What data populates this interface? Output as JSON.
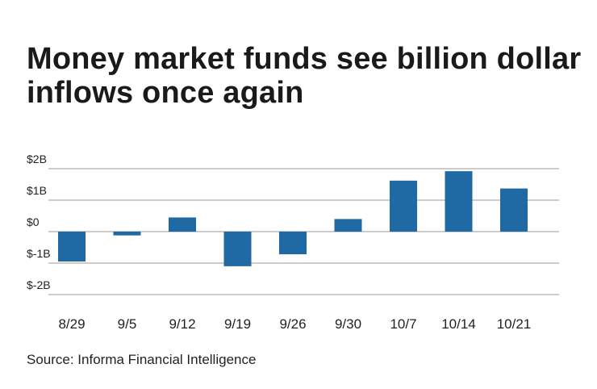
{
  "title": "Money market funds see billion dollar inflows once again",
  "source": "Source: Informa Financial Intelligence",
  "colors": {
    "bar": "#1f6aa5",
    "grid": "#9a9a9a"
  },
  "chart_data": {
    "type": "bar",
    "categories": [
      "8/29",
      "9/5",
      "9/12",
      "9/19",
      "9/26",
      "9/30",
      "10/7",
      "10/14",
      "10/21"
    ],
    "values": [
      -0.95,
      -0.12,
      0.45,
      -1.1,
      -0.72,
      0.4,
      1.62,
      1.92,
      1.37
    ],
    "ylim": [
      -2,
      2
    ],
    "yticks": [
      2,
      1,
      0,
      -1,
      -2
    ],
    "ytick_labels": [
      "$2B",
      "$1B",
      "$0",
      "$-1B",
      "$-2B"
    ],
    "grid": true,
    "legend": "none"
  }
}
